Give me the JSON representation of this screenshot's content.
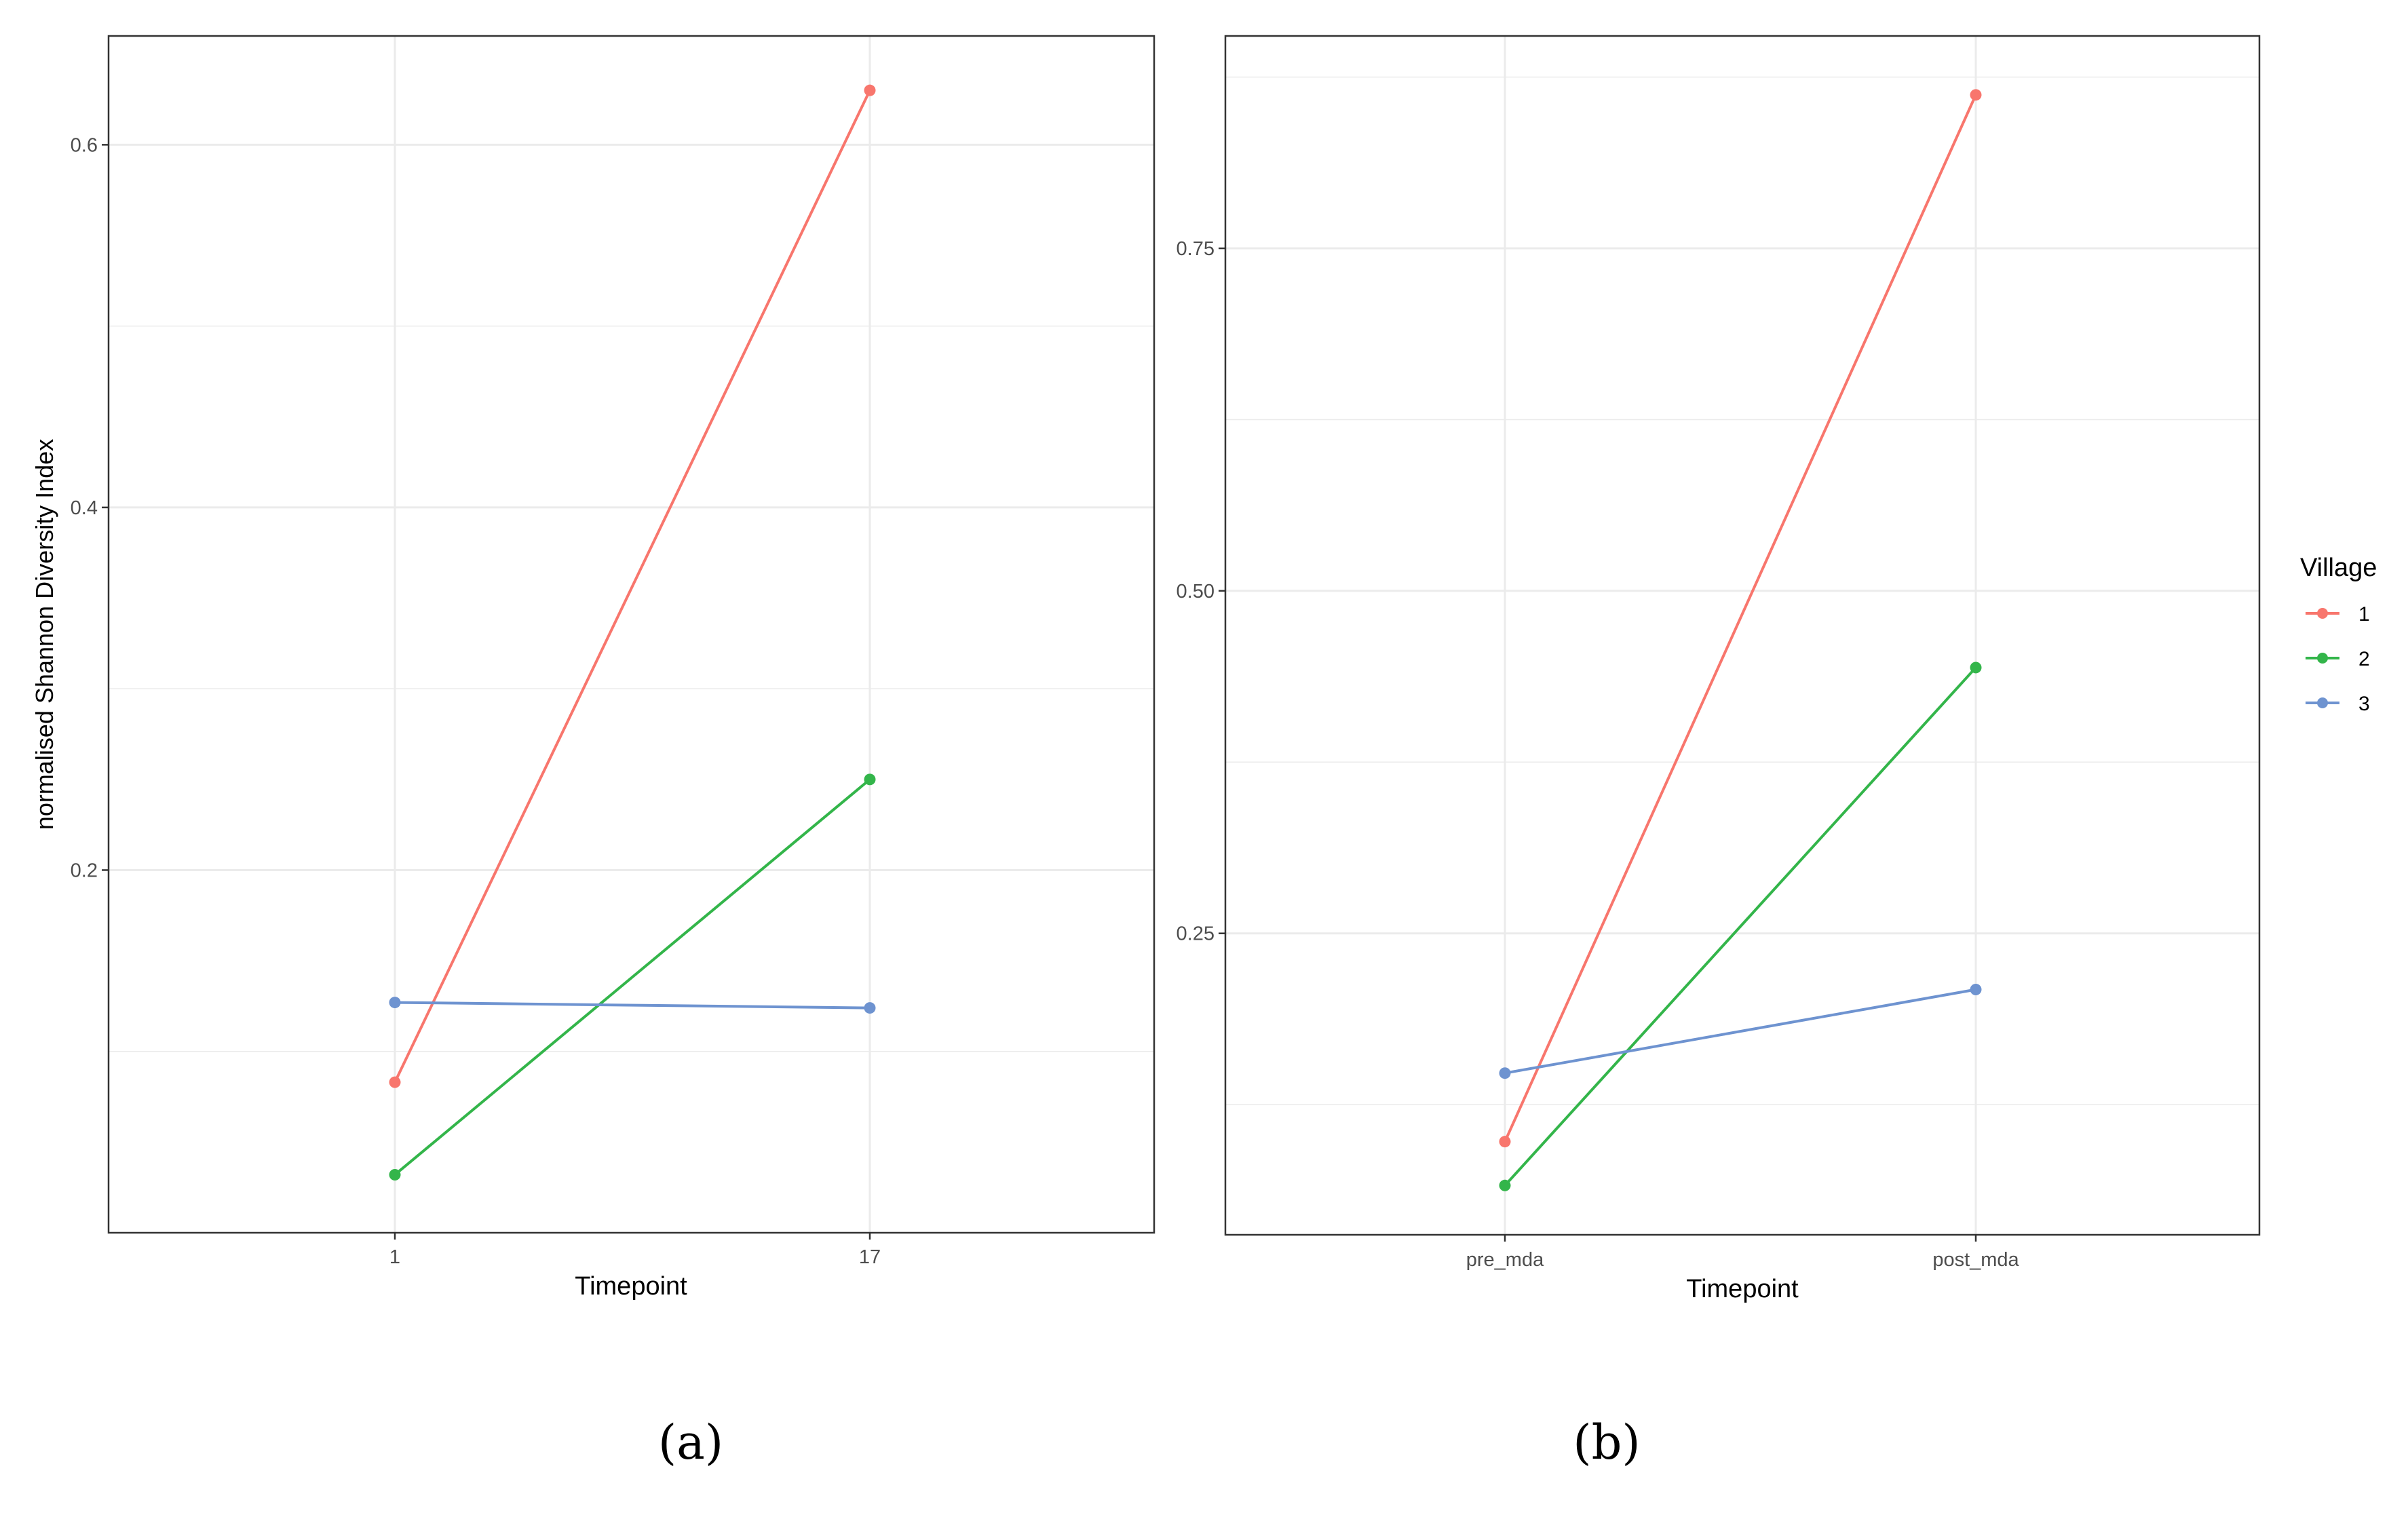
{
  "chart_data": [
    {
      "type": "line",
      "caption": "(a)",
      "xlabel": "Timepoint",
      "ylabel": "normalised Shannon Diversity Index",
      "categories": [
        "1",
        "17"
      ],
      "ylim": [
        0.0,
        0.66
      ],
      "yticks": [
        0.2,
        0.4,
        0.6
      ],
      "ytick_labels": [
        "0.2",
        "0.4",
        "0.6"
      ],
      "grid": true,
      "series": [
        {
          "name": "1",
          "values": [
            0.083,
            0.63
          ]
        },
        {
          "name": "2",
          "values": [
            0.032,
            0.25
          ]
        },
        {
          "name": "3",
          "values": [
            0.127,
            0.124
          ]
        }
      ]
    },
    {
      "type": "line",
      "caption": "(b)",
      "xlabel": "Timepoint",
      "ylabel": "",
      "categories": [
        "pre_mda",
        "post_mda"
      ],
      "ylim": [
        0.03,
        0.905
      ],
      "yticks": [
        0.25,
        0.5,
        0.75
      ],
      "ytick_labels": [
        "0.25",
        "0.50",
        "0.75"
      ],
      "grid": true,
      "series": [
        {
          "name": "1",
          "values": [
            0.098,
            0.862
          ]
        },
        {
          "name": "2",
          "values": [
            0.066,
            0.444
          ]
        },
        {
          "name": "3",
          "values": [
            0.148,
            0.209
          ]
        }
      ]
    }
  ],
  "legend": {
    "title": "Village",
    "position": "right",
    "items": [
      "1",
      "2",
      "3"
    ]
  },
  "colors": {
    "1": "#F8766D",
    "2": "#33B54A",
    "3": "#6E93D0",
    "grid": "#ebebeb",
    "panel_border": "#333333"
  }
}
